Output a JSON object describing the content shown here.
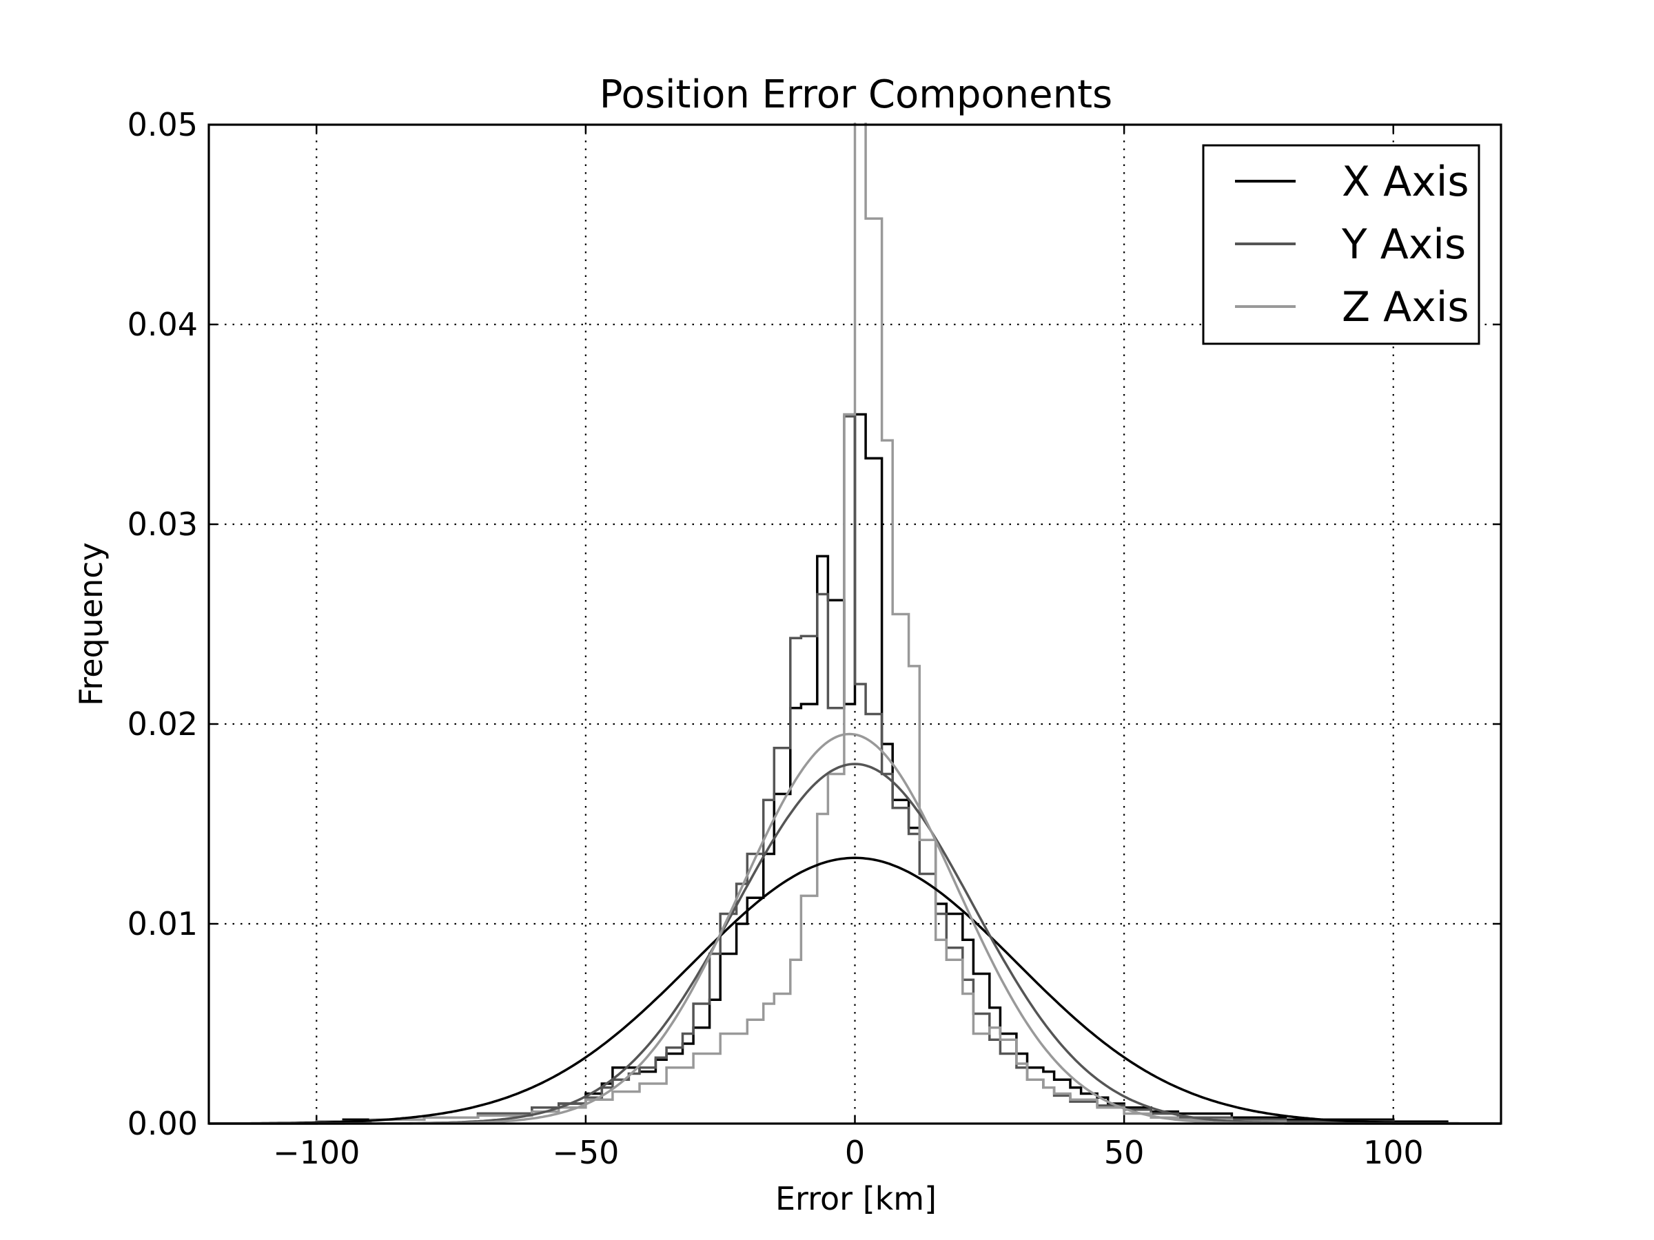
{
  "chart_data": {
    "type": "line",
    "title": "Position Error Components",
    "xlabel": "Error [km]",
    "ylabel": "Frequency",
    "xlim": [
      -120,
      120
    ],
    "ylim": [
      0,
      0.05
    ],
    "xticks": [
      -100,
      -50,
      0,
      50,
      100
    ],
    "xtick_labels": [
      "−100",
      "−50",
      "0",
      "50",
      "100"
    ],
    "yticks": [
      0.0,
      0.01,
      0.02,
      0.03,
      0.04,
      0.05
    ],
    "ytick_labels": [
      "0.00",
      "0.01",
      "0.02",
      "0.03",
      "0.04",
      "0.05"
    ],
    "grid": true,
    "legend_position": "top-right",
    "series": [
      {
        "name": "X Axis",
        "color": "#000000",
        "fit": {
          "mean": 0.0,
          "peak": 0.0133,
          "sigma": 30.0
        },
        "histogram": {
          "edges": [
            -120,
            -100,
            -95,
            -80,
            -70,
            -60,
            -55,
            -50,
            -47,
            -45,
            -40,
            -37,
            -35,
            -32,
            -30,
            -27,
            -25,
            -22,
            -20,
            -17,
            -15,
            -12,
            -10,
            -7,
            -5,
            -2,
            0,
            2,
            5,
            7,
            10,
            12,
            15,
            17,
            20,
            22,
            25,
            27,
            30,
            32,
            35,
            37,
            40,
            42,
            45,
            47,
            50,
            55,
            60,
            70,
            80,
            100,
            110,
            120
          ],
          "values": [
            0.0,
            0.0001,
            0.0002,
            0.0003,
            0.0005,
            0.0008,
            0.001,
            0.0015,
            0.002,
            0.0028,
            0.0026,
            0.0032,
            0.0035,
            0.004,
            0.0048,
            0.0062,
            0.0085,
            0.01,
            0.0113,
            0.0135,
            0.0165,
            0.0208,
            0.021,
            0.0284,
            0.0262,
            0.021,
            0.0355,
            0.0333,
            0.019,
            0.0162,
            0.0148,
            0.0142,
            0.011,
            0.0105,
            0.0092,
            0.0075,
            0.0058,
            0.0045,
            0.0035,
            0.0028,
            0.0026,
            0.0022,
            0.0018,
            0.0015,
            0.0013,
            0.001,
            0.0008,
            0.0006,
            0.0005,
            0.0003,
            0.0002,
            0.0001,
            0.0
          ]
        }
      },
      {
        "name": "Y Axis",
        "color": "#555555",
        "fit": {
          "mean": 0.0,
          "peak": 0.018,
          "sigma": 22.0
        },
        "histogram": {
          "edges": [
            -120,
            -100,
            -90,
            -80,
            -70,
            -60,
            -55,
            -50,
            -47,
            -45,
            -42,
            -40,
            -37,
            -35,
            -32,
            -30,
            -27,
            -25,
            -22,
            -20,
            -17,
            -15,
            -12,
            -10,
            -7,
            -5,
            -2,
            0,
            2,
            5,
            7,
            10,
            12,
            15,
            17,
            20,
            22,
            25,
            27,
            30,
            32,
            35,
            37,
            40,
            45,
            50,
            55,
            60,
            70,
            80,
            100,
            120
          ],
          "values": [
            0.0,
            0.0001,
            0.0002,
            0.0003,
            0.0005,
            0.0008,
            0.001,
            0.0013,
            0.0018,
            0.0022,
            0.0025,
            0.0028,
            0.0033,
            0.0038,
            0.0045,
            0.006,
            0.0085,
            0.0105,
            0.012,
            0.0135,
            0.0162,
            0.0188,
            0.0243,
            0.0244,
            0.0265,
            0.0208,
            0.0354,
            0.022,
            0.0205,
            0.0175,
            0.0158,
            0.0145,
            0.0125,
            0.0105,
            0.0088,
            0.0072,
            0.0055,
            0.0042,
            0.0035,
            0.0028,
            0.0022,
            0.0018,
            0.0014,
            0.0011,
            0.0009,
            0.0007,
            0.0005,
            0.0003,
            0.0002,
            0.0001,
            0.0
          ]
        }
      },
      {
        "name": "Z Axis",
        "color": "#999999",
        "fit": {
          "mean": -1.0,
          "peak": 0.0195,
          "sigma": 20.0
        },
        "histogram": {
          "edges": [
            -120,
            -100,
            -90,
            -80,
            -70,
            -60,
            -55,
            -50,
            -45,
            -40,
            -35,
            -30,
            -25,
            -20,
            -17,
            -15,
            -12,
            -10,
            -7,
            -5,
            -2,
            0,
            2,
            5,
            7,
            10,
            12,
            15,
            17,
            20,
            22,
            25,
            27,
            30,
            32,
            35,
            37,
            40,
            45,
            50,
            55,
            60,
            70,
            80,
            100,
            120
          ],
          "values": [
            0.0,
            0.0001,
            0.0002,
            0.0003,
            0.0004,
            0.0006,
            0.0008,
            0.0012,
            0.0016,
            0.002,
            0.0028,
            0.0035,
            0.0045,
            0.0052,
            0.006,
            0.0065,
            0.0082,
            0.0114,
            0.0155,
            0.0175,
            0.0355,
            0.052,
            0.0453,
            0.0342,
            0.0255,
            0.0229,
            0.0142,
            0.0092,
            0.0082,
            0.0065,
            0.0045,
            0.0048,
            0.0042,
            0.003,
            0.0022,
            0.0018,
            0.0015,
            0.0012,
            0.0008,
            0.0005,
            0.0003,
            0.0002,
            0.0001,
            0.0,
            0.0
          ]
        }
      }
    ]
  }
}
